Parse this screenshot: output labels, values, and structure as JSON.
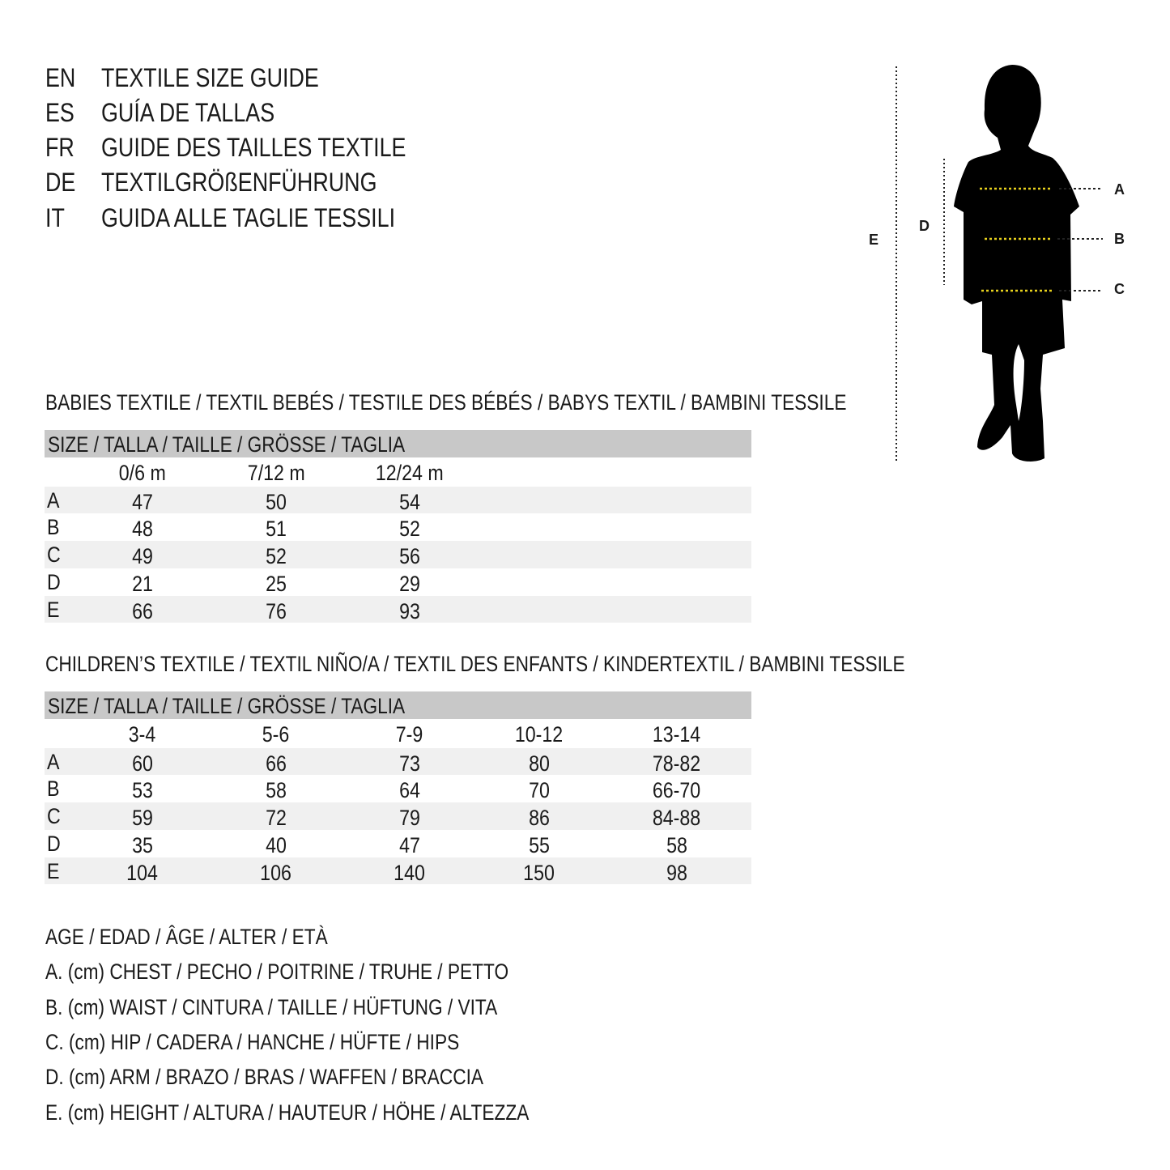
{
  "titles": [
    {
      "code": "EN",
      "text": "TEXTILE SIZE GUIDE"
    },
    {
      "code": "ES",
      "text": "GUÍA DE TALLAS"
    },
    {
      "code": "FR",
      "text": "GUIDE DES TAILLES TEXTILE"
    },
    {
      "code": "DE",
      "text": "TEXTILGRÖßENFÜHRUNG"
    },
    {
      "code": "IT",
      "text": "GUIDA ALLE TAGLIE TESSILI"
    }
  ],
  "figure": {
    "labels": {
      "A": "A",
      "B": "B",
      "C": "C",
      "D": "D",
      "E": "E"
    },
    "guide_color": "#e8d21d"
  },
  "babies": {
    "heading": "BABIES TEXTILE / TEXTIL BEBÉS / TESTILE DES BÉBÉS / BABYS TEXTIL / BAMBINI TESSILE",
    "size_header": "SIZE / TALLA / TAILLE / GRÖSSE / TAGLIA",
    "columns": [
      "0/6 m",
      "7/12 m",
      "12/24 m"
    ],
    "rows": [
      {
        "label": "A",
        "values": [
          "47",
          "50",
          "54"
        ]
      },
      {
        "label": "B",
        "values": [
          "48",
          "51",
          "52"
        ]
      },
      {
        "label": "C",
        "values": [
          "49",
          "52",
          "56"
        ]
      },
      {
        "label": "D",
        "values": [
          "21",
          "25",
          "29"
        ]
      },
      {
        "label": "E",
        "values": [
          "66",
          "76",
          "93"
        ]
      }
    ]
  },
  "children": {
    "heading": "CHILDREN’S TEXTILE / TEXTIL NIÑO/A / TEXTIL DES ENFANTS / KINDERTEXTIL / BAMBINI TESSILE",
    "size_header": "SIZE / TALLA / TAILLE / GRÖSSE / TAGLIA",
    "columns": [
      "3-4",
      "5-6",
      "7-9",
      "10-12",
      "13-14"
    ],
    "rows": [
      {
        "label": "A",
        "values": [
          "60",
          "66",
          "73",
          "80",
          "78-82"
        ]
      },
      {
        "label": "B",
        "values": [
          "53",
          "58",
          "64",
          "70",
          "66-70"
        ]
      },
      {
        "label": "C",
        "values": [
          "59",
          "72",
          "79",
          "86",
          "84-88"
        ]
      },
      {
        "label": "D",
        "values": [
          "35",
          "40",
          "47",
          "55",
          "58"
        ]
      },
      {
        "label": "E",
        "values": [
          "104",
          "106",
          "140",
          "150",
          "98"
        ]
      }
    ]
  },
  "legend": [
    "AGE / EDAD / ÂGE / ALTER / ETÀ",
    "A. (cm) CHEST / PECHO / POITRINE / TRUHE / PETTO",
    "B. (cm) WAIST / CINTURA / TAILLE / HÜFTUNG / VITA",
    "C. (cm) HIP / CADERA / HANCHE / HÜFTE / HIPS",
    "D. (cm) ARM / BRAZO / BRAS / WAFFEN / BRACCIA",
    "E. (cm) HEIGHT / ALTURA / HAUTEUR / HÖHE / ALTEZZA"
  ]
}
